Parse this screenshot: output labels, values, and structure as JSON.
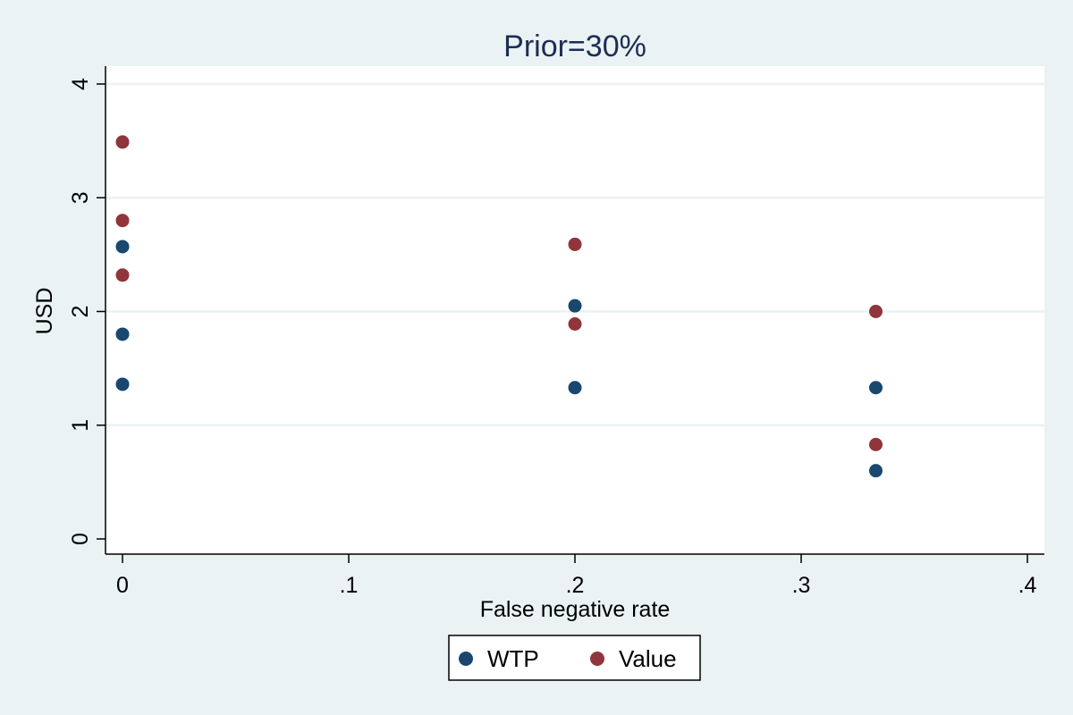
{
  "chart_data": {
    "type": "scatter",
    "title": "Prior=30%",
    "xlabel": "False negative rate",
    "ylabel": "USD",
    "xlim": [
      0,
      0.4
    ],
    "ylim": [
      0,
      4
    ],
    "xticks": [
      {
        "value": 0,
        "label": "0"
      },
      {
        "value": 0.1,
        "label": ".1"
      },
      {
        "value": 0.2,
        "label": ".2"
      },
      {
        "value": 0.3,
        "label": ".3"
      },
      {
        "value": 0.4,
        "label": ".4"
      }
    ],
    "yticks": [
      {
        "value": 0,
        "label": "0"
      },
      {
        "value": 1,
        "label": "1"
      },
      {
        "value": 2,
        "label": "2"
      },
      {
        "value": 3,
        "label": "3"
      },
      {
        "value": 4,
        "label": "4"
      }
    ],
    "grid": "horizontal",
    "legend_position": "bottom",
    "series": [
      {
        "name": "WTP",
        "color": "#1A476F",
        "points": [
          {
            "x": 0,
            "y": 2.57
          },
          {
            "x": 0,
            "y": 1.8
          },
          {
            "x": 0,
            "y": 1.36
          },
          {
            "x": 0.2,
            "y": 2.05
          },
          {
            "x": 0.2,
            "y": 1.33
          },
          {
            "x": 0.333,
            "y": 1.33
          },
          {
            "x": 0.333,
            "y": 0.6
          }
        ]
      },
      {
        "name": "Value",
        "color": "#90353B",
        "points": [
          {
            "x": 0,
            "y": 3.49
          },
          {
            "x": 0,
            "y": 2.8
          },
          {
            "x": 0,
            "y": 2.32
          },
          {
            "x": 0.2,
            "y": 2.59
          },
          {
            "x": 0.2,
            "y": 1.89
          },
          {
            "x": 0.333,
            "y": 2.0
          },
          {
            "x": 0.333,
            "y": 0.83
          }
        ]
      }
    ]
  }
}
